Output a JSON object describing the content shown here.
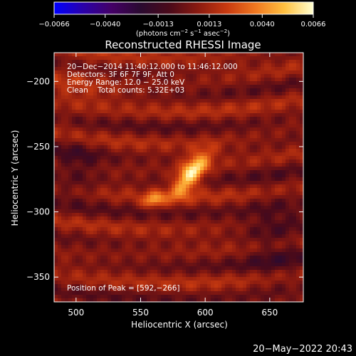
{
  "chart_data": {
    "type": "heatmap",
    "title": "Reconstructed RHESSI Image",
    "xlabel": "Heliocentric X (arcsec)",
    "ylabel": "Heliocentric Y (arcsec)",
    "xlim": [
      483,
      676
    ],
    "ylim": [
      -369,
      -178
    ],
    "x_ticks": [
      500,
      550,
      600,
      650
    ],
    "y_ticks": [
      -200,
      -250,
      -300,
      -350
    ],
    "colorbar": {
      "range": [
        -0.0066,
        0.0066
      ],
      "tick_values": [
        -0.0066,
        -0.004,
        -0.0013,
        0.0013,
        0.004,
        0.0066
      ],
      "tick_labels": [
        "−0.0066",
        "−0.0040",
        "−0.0013",
        "0.0013",
        "0.0040",
        "0.0066"
      ],
      "units_text": "(photons cm",
      "units_exp1": "−2",
      "units_mid": " s",
      "units_exp2": "−1",
      "units_mid2": " asec",
      "units_exp3": "−2",
      "units_end": ")",
      "colormap": [
        "#0000ff",
        "#2a00aa",
        "#440066",
        "#2a0a30",
        "#4a0a1a",
        "#8a1a10",
        "#c83a10",
        "#f07820",
        "#ffc040",
        "#ffffd0"
      ]
    },
    "info_lines": [
      "20−Dec−2014 11:40:12.000 to 11:46:12.000",
      "Detectors: 3F 6F 7F 9F, Att 0",
      "Energy Range: 12.0 − 25.0 keV",
      "Clean    Total counts: 5.32E+03"
    ],
    "peak_label": "Position of Peak = [592,−266]",
    "peak": {
      "x": 592,
      "y": -266,
      "value": 0.0066
    },
    "sources": [
      {
        "x": 589,
        "y": -271,
        "amplitude": 0.0058,
        "sigma_major": 14,
        "sigma_minor": 6,
        "angle_deg": 52
      },
      {
        "x": 560,
        "y": -291,
        "amplitude": 0.0032,
        "sigma_major": 6,
        "sigma_minor": 4,
        "angle_deg": 30
      }
    ],
    "timestamp": "20−May−2022 20:43"
  }
}
